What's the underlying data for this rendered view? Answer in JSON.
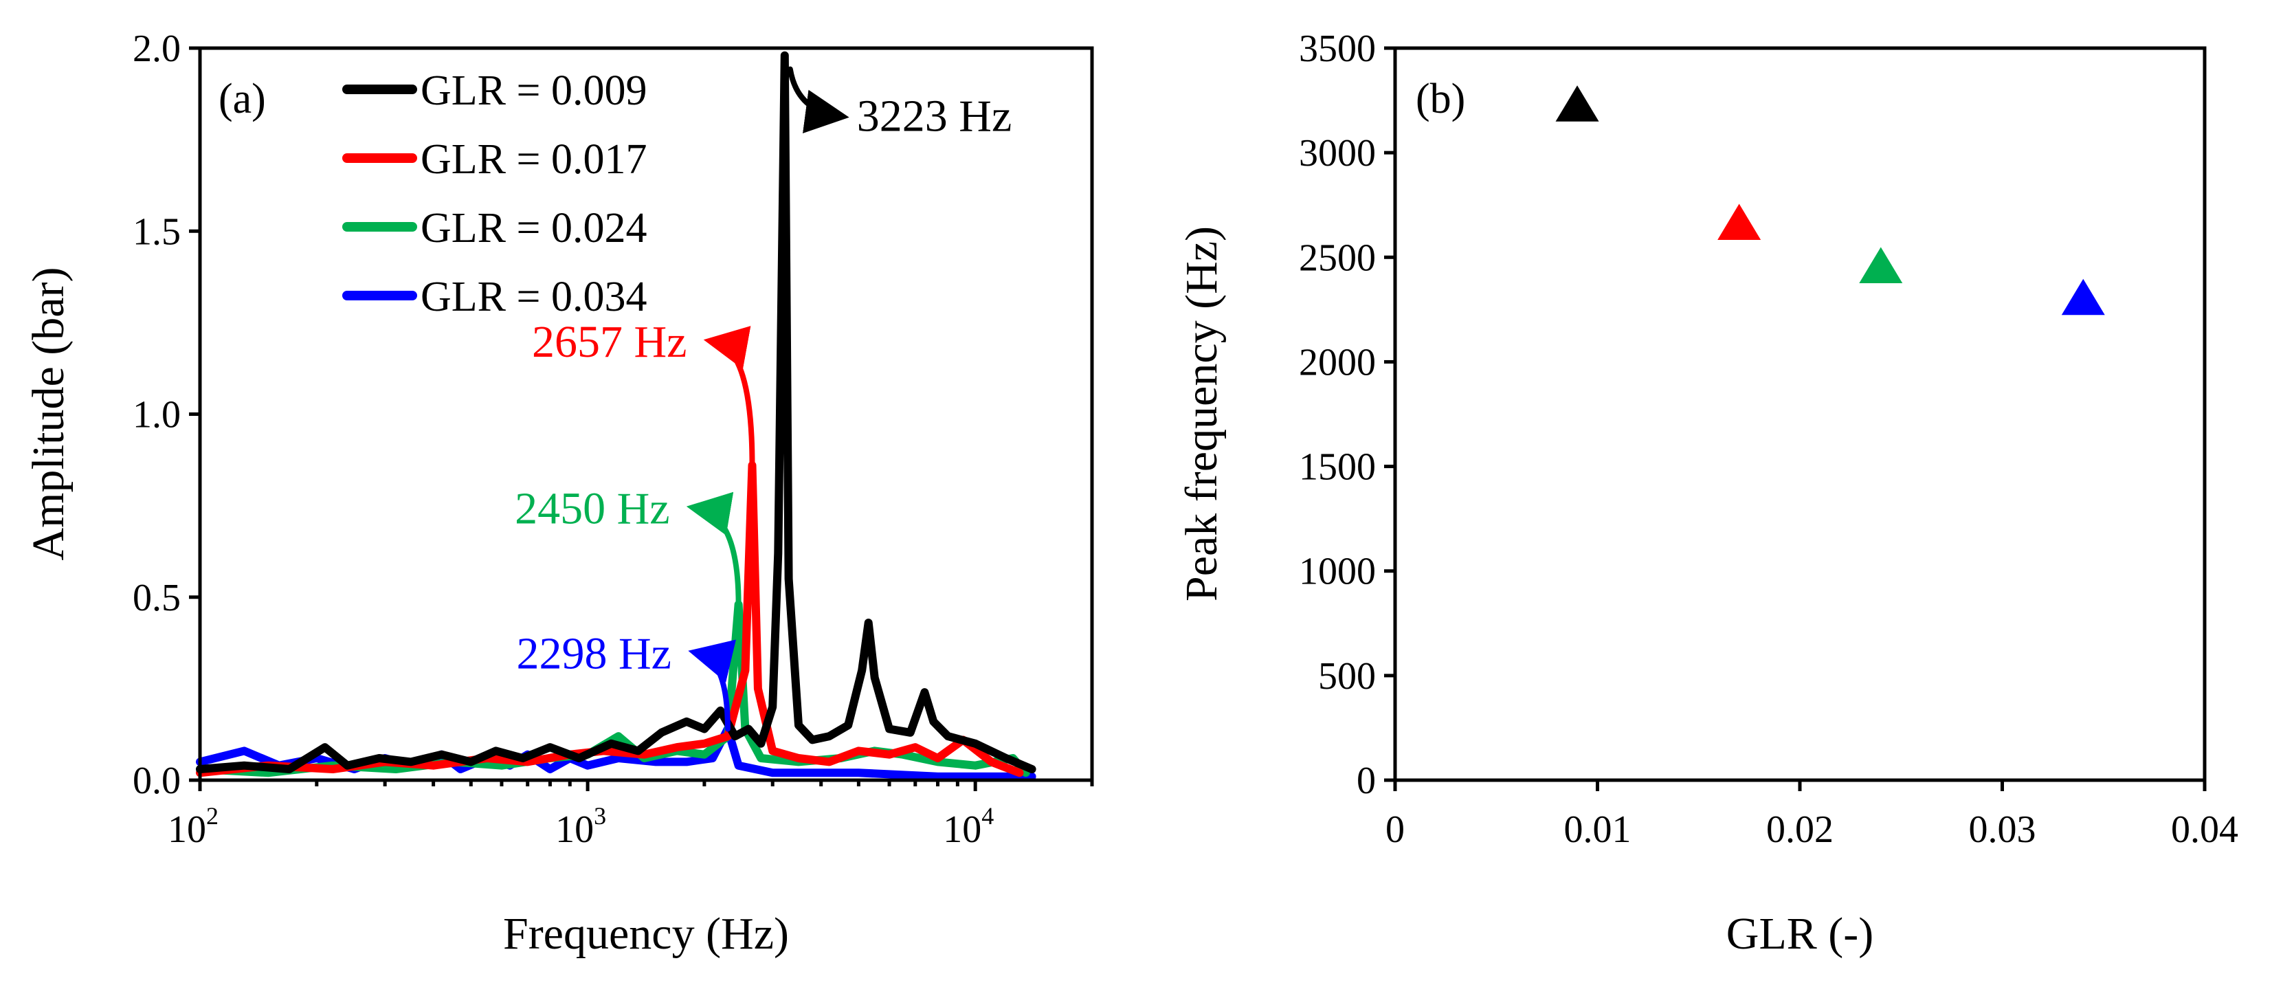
{
  "chart_data": [
    {
      "type": "line",
      "panel_label": "(a)",
      "xlabel": "Frequency (Hz)",
      "ylabel": "Amplitude (bar)",
      "xscale": "log",
      "xlim": [
        100,
        20000
      ],
      "ylim": [
        0,
        2.0
      ],
      "x_ticks": [
        {
          "base": "10",
          "exp": "2",
          "value": 100
        },
        {
          "base": "10",
          "exp": "3",
          "value": 1000
        },
        {
          "base": "10",
          "exp": "4",
          "value": 10000
        }
      ],
      "y_ticks": [
        {
          "label": "0.0",
          "value": 0
        },
        {
          "label": "0.5",
          "value": 0.5
        },
        {
          "label": "1.0",
          "value": 1.0
        },
        {
          "label": "1.5",
          "value": 1.5
        },
        {
          "label": "2.0",
          "value": 2.0
        }
      ],
      "legend_position": "top-left",
      "series": [
        {
          "name": "GLR = 0.009",
          "color": "#000000",
          "peak": {
            "freq": 3223,
            "amp": 1.98,
            "label": "3223  Hz"
          },
          "points": [
            [
              100,
              0.03
            ],
            [
              130,
              0.04
            ],
            [
              170,
              0.03
            ],
            [
              210,
              0.09
            ],
            [
              240,
              0.04
            ],
            [
              290,
              0.06
            ],
            [
              350,
              0.05
            ],
            [
              420,
              0.07
            ],
            [
              500,
              0.05
            ],
            [
              580,
              0.08
            ],
            [
              680,
              0.06
            ],
            [
              800,
              0.09
            ],
            [
              950,
              0.06
            ],
            [
              1150,
              0.1
            ],
            [
              1350,
              0.08
            ],
            [
              1550,
              0.13
            ],
            [
              1800,
              0.16
            ],
            [
              2000,
              0.14
            ],
            [
              2200,
              0.19
            ],
            [
              2400,
              0.12
            ],
            [
              2600,
              0.14
            ],
            [
              2800,
              0.1
            ],
            [
              3000,
              0.2
            ],
            [
              3100,
              0.62
            ],
            [
              3223,
              1.98
            ],
            [
              3300,
              0.55
            ],
            [
              3500,
              0.15
            ],
            [
              3800,
              0.11
            ],
            [
              4200,
              0.12
            ],
            [
              4700,
              0.15
            ],
            [
              5100,
              0.3
            ],
            [
              5300,
              0.43
            ],
            [
              5500,
              0.28
            ],
            [
              6000,
              0.14
            ],
            [
              6800,
              0.13
            ],
            [
              7400,
              0.24
            ],
            [
              7800,
              0.16
            ],
            [
              8500,
              0.12
            ],
            [
              10000,
              0.1
            ],
            [
              12000,
              0.06
            ],
            [
              14000,
              0.03
            ]
          ]
        },
        {
          "name": "GLR = 0.017",
          "color": "#ff0000",
          "peak": {
            "freq": 2657,
            "amp": 0.86,
            "label": "2657 Hz"
          },
          "points": [
            [
              100,
              0.02
            ],
            [
              150,
              0.04
            ],
            [
              220,
              0.03
            ],
            [
              300,
              0.05
            ],
            [
              400,
              0.04
            ],
            [
              550,
              0.06
            ],
            [
              700,
              0.05
            ],
            [
              900,
              0.07
            ],
            [
              1100,
              0.08
            ],
            [
              1400,
              0.07
            ],
            [
              1700,
              0.09
            ],
            [
              2000,
              0.1
            ],
            [
              2300,
              0.12
            ],
            [
              2550,
              0.3
            ],
            [
              2657,
              0.86
            ],
            [
              2750,
              0.25
            ],
            [
              3000,
              0.08
            ],
            [
              3500,
              0.06
            ],
            [
              4200,
              0.05
            ],
            [
              5000,
              0.08
            ],
            [
              6000,
              0.07
            ],
            [
              7000,
              0.09
            ],
            [
              8000,
              0.06
            ],
            [
              9300,
              0.11
            ],
            [
              11000,
              0.05
            ],
            [
              13000,
              0.02
            ]
          ]
        },
        {
          "name": "GLR = 0.024",
          "color": "#00b050",
          "peak": {
            "freq": 2450,
            "amp": 0.48,
            "label": "2450 Hz"
          },
          "points": [
            [
              100,
              0.03
            ],
            [
              150,
              0.02
            ],
            [
              220,
              0.04
            ],
            [
              320,
              0.03
            ],
            [
              450,
              0.05
            ],
            [
              600,
              0.04
            ],
            [
              800,
              0.06
            ],
            [
              1000,
              0.07
            ],
            [
              1200,
              0.12
            ],
            [
              1400,
              0.06
            ],
            [
              1700,
              0.08
            ],
            [
              2000,
              0.07
            ],
            [
              2300,
              0.12
            ],
            [
              2450,
              0.48
            ],
            [
              2550,
              0.14
            ],
            [
              2800,
              0.06
            ],
            [
              3500,
              0.05
            ],
            [
              4500,
              0.06
            ],
            [
              5500,
              0.08
            ],
            [
              6500,
              0.07
            ],
            [
              8000,
              0.05
            ],
            [
              10000,
              0.04
            ],
            [
              12500,
              0.06
            ],
            [
              13500,
              0.02
            ]
          ]
        },
        {
          "name": "GLR = 0.034",
          "color": "#0000ff",
          "peak": {
            "freq": 2298,
            "amp": 0.14,
            "label": "2298 Hz"
          },
          "points": [
            [
              100,
              0.05
            ],
            [
              130,
              0.08
            ],
            [
              160,
              0.04
            ],
            [
              200,
              0.06
            ],
            [
              250,
              0.03
            ],
            [
              300,
              0.06
            ],
            [
              350,
              0.04
            ],
            [
              420,
              0.07
            ],
            [
              470,
              0.03
            ],
            [
              550,
              0.06
            ],
            [
              630,
              0.04
            ],
            [
              700,
              0.07
            ],
            [
              800,
              0.03
            ],
            [
              900,
              0.06
            ],
            [
              1000,
              0.04
            ],
            [
              1200,
              0.06
            ],
            [
              1500,
              0.05
            ],
            [
              1800,
              0.05
            ],
            [
              2100,
              0.06
            ],
            [
              2298,
              0.14
            ],
            [
              2450,
              0.04
            ],
            [
              3000,
              0.02
            ],
            [
              5000,
              0.02
            ],
            [
              8000,
              0.01
            ],
            [
              12000,
              0.01
            ],
            [
              14000,
              0.01
            ]
          ]
        }
      ]
    },
    {
      "type": "scatter",
      "panel_label": "(b)",
      "xlabel": "GLR (-)",
      "ylabel": "Peak frequency (Hz)",
      "xlim": [
        0,
        0.04
      ],
      "ylim": [
        0,
        3500
      ],
      "x_ticks": [
        {
          "label": "0",
          "value": 0
        },
        {
          "label": "0.01",
          "value": 0.01
        },
        {
          "label": "0.02",
          "value": 0.02
        },
        {
          "label": "0.03",
          "value": 0.03
        },
        {
          "label": "0.04",
          "value": 0.04
        }
      ],
      "y_ticks": [
        {
          "label": "0",
          "value": 0
        },
        {
          "label": "500",
          "value": 500
        },
        {
          "label": "1000",
          "value": 1000
        },
        {
          "label": "1500",
          "value": 1500
        },
        {
          "label": "2000",
          "value": 2000
        },
        {
          "label": "2500",
          "value": 2500
        },
        {
          "label": "3000",
          "value": 3000
        },
        {
          "label": "3500",
          "value": 3500
        }
      ],
      "marker": "triangle",
      "points": [
        {
          "x": 0.009,
          "y": 3223,
          "color": "#000000"
        },
        {
          "x": 0.017,
          "y": 2657,
          "color": "#ff0000"
        },
        {
          "x": 0.024,
          "y": 2450,
          "color": "#00b050"
        },
        {
          "x": 0.034,
          "y": 2298,
          "color": "#0000ff"
        }
      ]
    }
  ]
}
